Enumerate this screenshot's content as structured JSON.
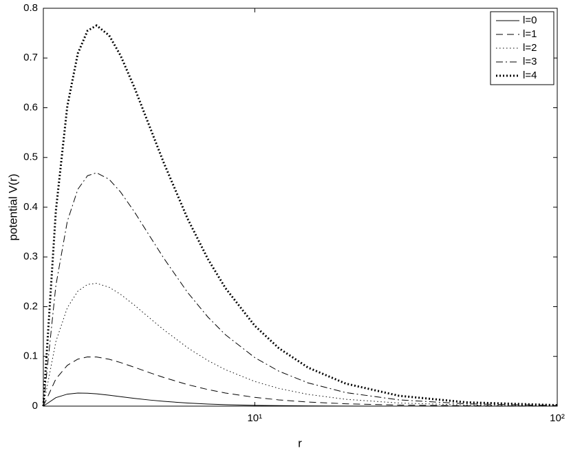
{
  "chart_data": {
    "type": "line",
    "xlabel": "r",
    "ylabel": "potential V(r)",
    "xscale": "log",
    "x": [
      2,
      2.2,
      2.4,
      2.6,
      2.8,
      3,
      3.3,
      3.6,
      4,
      4.5,
      5,
      6,
      7,
      8,
      10,
      12,
      15,
      20,
      30,
      50,
      100
    ],
    "series": [
      {
        "name": "l=0",
        "color": "#000000",
        "linestyle": "solid",
        "linewidth": 1,
        "values": [
          0,
          0.01708,
          0.02411,
          0.02626,
          0.02603,
          0.02469,
          0.02192,
          0.01905,
          0.01563,
          0.01219,
          0.0096,
          0.00617,
          0.00416,
          0.00293,
          0.0016,
          0.00096,
          0.00051,
          0.00023,
          7e-05,
          2e-05,
          0
        ]
      },
      {
        "name": "l=1",
        "color": "#000000",
        "linestyle": "dashed",
        "linewidth": 1,
        "values": [
          0,
          0.05464,
          0.08198,
          0.09453,
          0.09892,
          0.09877,
          0.09427,
          0.08764,
          0.07813,
          0.06707,
          0.0576,
          0.04321,
          0.03332,
          0.02637,
          0.0176,
          0.01254,
          0.00822,
          0.00473,
          0.00214,
          0.00078,
          0.0002
        ]
      },
      {
        "name": "l=2",
        "color": "#000000",
        "linestyle": "dotted",
        "linewidth": 1,
        "values": [
          0,
          0.12977,
          0.19773,
          0.23108,
          0.24469,
          0.24691,
          0.23897,
          0.22481,
          0.20313,
          0.1768,
          0.1536,
          0.11728,
          0.09163,
          0.07324,
          0.0496,
          0.03569,
          0.02363,
          0.01373,
          0.00629,
          0.00232,
          0.00059
        ]
      },
      {
        "name": "l=3",
        "color": "#000000",
        "linestyle": "dashdot",
        "linewidth": 1,
        "values": [
          0,
          0.24247,
          0.37134,
          0.43591,
          0.46335,
          0.46914,
          0.45602,
          0.43058,
          0.39063,
          0.34141,
          0.2976,
          0.2284,
          0.17909,
          0.14355,
          0.0976,
          0.07041,
          0.04674,
          0.02723,
          0.01251,
          0.00462,
          0.00118
        ]
      },
      {
        "name": "l=4",
        "color": "#000000",
        "linestyle": "dotted",
        "linewidth": 3,
        "values": [
          0,
          0.39273,
          0.60282,
          0.70901,
          0.75489,
          0.76543,
          0.74541,
          0.70492,
          0.64063,
          0.56089,
          0.4896,
          0.37654,
          0.29571,
          0.2373,
          0.1616,
          0.11671,
          0.07755,
          0.04523,
          0.02081,
          0.0077,
          0.00196
        ]
      }
    ],
    "xlim": [
      2,
      100
    ],
    "xticks": [
      {
        "value": 10,
        "label": "10¹"
      },
      {
        "value": 100,
        "label": "10²"
      }
    ],
    "ylim": [
      0,
      0.8
    ],
    "yticks": [
      0,
      0.1,
      0.2,
      0.3,
      0.4,
      0.5,
      0.6,
      0.7,
      0.8
    ],
    "grid": false,
    "legend": "top-right"
  }
}
